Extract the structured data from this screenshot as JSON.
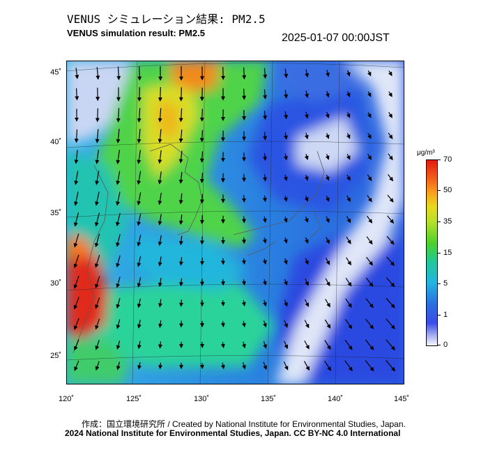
{
  "header": {
    "title_ja": "VENUS シミュレーション結果: PM2.5",
    "title_en": "VENUS simulation result: PM2.5",
    "timestamp": "2025-01-07 00:00JST"
  },
  "map": {
    "latitude_labels": [
      "45˚",
      "40˚",
      "35˚",
      "30˚",
      "25˚"
    ],
    "longitude_labels": [
      "120˚",
      "125˚",
      "130˚",
      "135˚",
      "140˚",
      "145˚"
    ],
    "extent": {
      "lon": [
        120,
        145
      ],
      "lat": [
        23,
        46
      ]
    }
  },
  "colorbar": {
    "unit": "μg/m³",
    "labels": [
      "70",
      "50",
      "35",
      "15",
      "5",
      "1",
      "0"
    ],
    "colors": [
      "#e41a10",
      "#f7a51c",
      "#e9d81c",
      "#4cd12a",
      "#22b6e0",
      "#2b6de0",
      "#f6f6fb"
    ]
  },
  "footer": {
    "credit_line": "作成：国立環境研究所 / Created by National Institute for Environmental Studies, Japan.",
    "copyright_line": "2024 National Institute for Environmental Studies, Japan. CC BY-NC 4.0 International"
  }
}
